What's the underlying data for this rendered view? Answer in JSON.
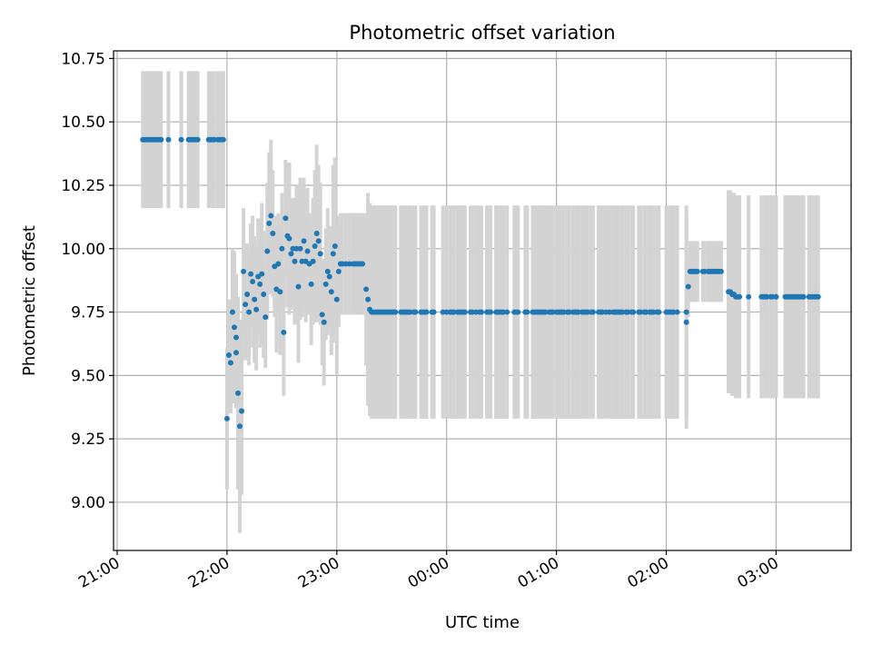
{
  "chart_data": {
    "type": "scatter",
    "title": "Photometric offset variation",
    "xlabel": "UTC time",
    "ylabel": "Photometric offset",
    "x_unit": "UTC time (hh:mm, night spanning midnight)",
    "x_ticks": [
      "21:00",
      "22:00",
      "23:00",
      "00:00",
      "01:00",
      "02:00",
      "03:00"
    ],
    "y_ticks": [
      "9.00",
      "9.25",
      "9.50",
      "9.75",
      "10.00",
      "10.25",
      "10.50",
      "10.75"
    ],
    "xlim": [
      "20:58",
      "03:41"
    ],
    "ylim": [
      8.81,
      10.78
    ],
    "grid": true,
    "colors": {
      "points": "#1f77b4",
      "error_bars": "#d3d3d3",
      "grid": "#b0b0b0"
    },
    "points": [
      [
        "21:14",
        10.43,
        0.27
      ],
      [
        "21:15",
        10.43,
        0.27
      ],
      [
        "21:16",
        10.43,
        0.27
      ],
      [
        "21:17",
        10.43,
        0.27
      ],
      [
        "21:18",
        10.43,
        0.27
      ],
      [
        "21:19",
        10.43,
        0.27
      ],
      [
        "21:20",
        10.43,
        0.27
      ],
      [
        "21:21",
        10.43,
        0.27
      ],
      [
        "21:22",
        10.43,
        0.27
      ],
      [
        "21:23",
        10.43,
        0.27
      ],
      [
        "21:24",
        10.43,
        0.27
      ],
      [
        "21:28",
        10.43,
        0.27
      ],
      [
        "21:35",
        10.43,
        0.27
      ],
      [
        "21:39",
        10.43,
        0.27
      ],
      [
        "21:40",
        10.43,
        0.27
      ],
      [
        "21:41",
        10.43,
        0.27
      ],
      [
        "21:42",
        10.43,
        0.27
      ],
      [
        "21:43",
        10.43,
        0.27
      ],
      [
        "21:44",
        10.43,
        0.27
      ],
      [
        "21:50",
        10.43,
        0.27
      ],
      [
        "21:51",
        10.43,
        0.27
      ],
      [
        "21:52",
        10.43,
        0.27
      ],
      [
        "21:53",
        10.43,
        0.27
      ],
      [
        "21:55",
        10.43,
        0.27
      ],
      [
        "21:56",
        10.43,
        0.27
      ],
      [
        "21:57",
        10.43,
        0.27
      ],
      [
        "21:58",
        10.43,
        0.27
      ],
      [
        "22:00",
        9.33,
        0.28
      ],
      [
        "22:01",
        9.58,
        0.22
      ],
      [
        "22:02",
        9.55,
        0.2
      ],
      [
        "22:03",
        9.75,
        0.25
      ],
      [
        "22:04",
        9.69,
        0.3
      ],
      [
        "22:05",
        9.59,
        0.22
      ],
      [
        "22:05",
        9.65,
        0.25
      ],
      [
        "22:06",
        9.43,
        0.38
      ],
      [
        "22:07",
        9.3,
        0.42
      ],
      [
        "22:08",
        9.36,
        0.33
      ],
      [
        "22:09",
        9.91,
        0.25
      ],
      [
        "22:10",
        9.78,
        0.22
      ],
      [
        "22:11",
        9.82,
        0.2
      ],
      [
        "22:12",
        9.75,
        0.21
      ],
      [
        "22:13",
        9.9,
        0.2
      ],
      [
        "22:14",
        9.87,
        0.26
      ],
      [
        "22:15",
        9.8,
        0.25
      ],
      [
        "22:16",
        9.76,
        0.24
      ],
      [
        "22:17",
        9.89,
        0.23
      ],
      [
        "22:18",
        9.86,
        0.25
      ],
      [
        "22:19",
        9.9,
        0.28
      ],
      [
        "22:20",
        9.82,
        0.25
      ],
      [
        "22:21",
        9.73,
        0.2
      ],
      [
        "22:22",
        9.99,
        0.27
      ],
      [
        "22:23",
        10.1,
        0.28
      ],
      [
        "22:24",
        10.13,
        0.3
      ],
      [
        "22:25",
        10.06,
        0.25
      ],
      [
        "22:26",
        9.93,
        0.2
      ],
      [
        "22:27",
        9.84,
        0.25
      ],
      [
        "22:28",
        9.94,
        0.2
      ],
      [
        "22:29",
        9.83,
        0.25
      ],
      [
        "22:30",
        10.0,
        0.22
      ],
      [
        "22:31",
        9.67,
        0.25
      ],
      [
        "22:32",
        10.12,
        0.23
      ],
      [
        "22:33",
        10.05,
        0.28
      ],
      [
        "22:34",
        10.04,
        0.3
      ],
      [
        "22:35",
        9.98,
        0.22
      ],
      [
        "22:36",
        10.0,
        0.2
      ],
      [
        "22:37",
        9.95,
        0.25
      ],
      [
        "22:38",
        10.0,
        0.25
      ],
      [
        "22:39",
        9.85,
        0.3
      ],
      [
        "22:40",
        10.0,
        0.28
      ],
      [
        "22:41",
        9.95,
        0.22
      ],
      [
        "22:42",
        10.03,
        0.25
      ],
      [
        "22:43",
        9.95,
        0.24
      ],
      [
        "22:44",
        9.99,
        0.25
      ],
      [
        "22:45",
        9.94,
        0.2
      ],
      [
        "22:46",
        9.86,
        0.24
      ],
      [
        "22:47",
        9.95,
        0.25
      ],
      [
        "22:48",
        10.01,
        0.3
      ],
      [
        "22:49",
        10.06,
        0.35
      ],
      [
        "22:50",
        10.03,
        0.3
      ],
      [
        "22:51",
        9.98,
        0.28
      ],
      [
        "22:52",
        9.74,
        0.2
      ],
      [
        "22:53",
        9.71,
        0.25
      ],
      [
        "22:54",
        9.86,
        0.22
      ],
      [
        "22:55",
        9.91,
        0.25
      ],
      [
        "22:56",
        9.89,
        0.2
      ],
      [
        "22:57",
        9.83,
        0.25
      ],
      [
        "22:58",
        9.98,
        0.35
      ],
      [
        "22:59",
        10.01,
        0.35
      ],
      [
        "23:00",
        9.8,
        0.3
      ],
      [
        "23:01",
        9.91,
        0.22
      ],
      [
        "23:02",
        9.94,
        0.2
      ],
      [
        "23:03",
        9.94,
        0.2
      ],
      [
        "23:05",
        9.94,
        0.2
      ],
      [
        "23:07",
        9.94,
        0.2
      ],
      [
        "23:09",
        9.94,
        0.2
      ],
      [
        "23:10",
        9.94,
        0.2
      ],
      [
        "23:11",
        9.94,
        0.2
      ],
      [
        "23:12",
        9.94,
        0.2
      ],
      [
        "23:13",
        9.94,
        0.2
      ],
      [
        "23:14",
        9.94,
        0.2
      ],
      [
        "23:16",
        9.84,
        0.3
      ],
      [
        "23:17",
        9.8,
        0.42
      ],
      [
        "23:18",
        9.76,
        0.42
      ],
      [
        "23:19",
        9.75,
        0.42
      ],
      [
        "23:20",
        9.75,
        0.42
      ],
      [
        "23:21",
        9.75,
        0.42
      ],
      [
        "23:22",
        9.75,
        0.42
      ],
      [
        "23:23",
        9.75,
        0.42
      ],
      [
        "23:24",
        9.75,
        0.42
      ],
      [
        "23:25",
        9.75,
        0.42
      ],
      [
        "23:26",
        9.75,
        0.42
      ],
      [
        "23:27",
        9.75,
        0.42
      ],
      [
        "23:28",
        9.75,
        0.42
      ],
      [
        "23:29",
        9.75,
        0.42
      ],
      [
        "23:30",
        9.75,
        0.42
      ],
      [
        "23:31",
        9.75,
        0.42
      ],
      [
        "23:32",
        9.75,
        0.42
      ],
      [
        "23:35",
        9.75,
        0.42
      ],
      [
        "23:36",
        9.75,
        0.42
      ],
      [
        "23:37",
        9.75,
        0.42
      ],
      [
        "23:38",
        9.75,
        0.42
      ],
      [
        "23:39",
        9.75,
        0.42
      ],
      [
        "23:40",
        9.75,
        0.42
      ],
      [
        "23:42",
        9.75,
        0.42
      ],
      [
        "23:43",
        9.75,
        0.42
      ],
      [
        "23:46",
        9.75,
        0.42
      ],
      [
        "23:47",
        9.75,
        0.42
      ],
      [
        "23:48",
        9.75,
        0.42
      ],
      [
        "23:49",
        9.75,
        0.42
      ],
      [
        "23:52",
        9.75,
        0.42
      ],
      [
        "23:53",
        9.75,
        0.42
      ],
      [
        "23:58",
        9.75,
        0.42
      ],
      [
        "00:00",
        9.75,
        0.42
      ],
      [
        "00:02",
        9.75,
        0.42
      ],
      [
        "00:03",
        9.75,
        0.42
      ],
      [
        "00:04",
        9.75,
        0.42
      ],
      [
        "00:06",
        9.75,
        0.42
      ],
      [
        "00:07",
        9.75,
        0.42
      ],
      [
        "00:08",
        9.75,
        0.42
      ],
      [
        "00:09",
        9.75,
        0.42
      ],
      [
        "00:10",
        9.75,
        0.42
      ],
      [
        "00:13",
        9.75,
        0.42
      ],
      [
        "00:14",
        9.75,
        0.42
      ],
      [
        "00:16",
        9.75,
        0.42
      ],
      [
        "00:18",
        9.75,
        0.42
      ],
      [
        "00:19",
        9.75,
        0.42
      ],
      [
        "00:22",
        9.75,
        0.42
      ],
      [
        "00:23",
        9.75,
        0.42
      ],
      [
        "00:24",
        9.75,
        0.42
      ],
      [
        "00:27",
        9.75,
        0.42
      ],
      [
        "00:28",
        9.75,
        0.42
      ],
      [
        "00:29",
        9.75,
        0.42
      ],
      [
        "00:30",
        9.75,
        0.42
      ],
      [
        "00:31",
        9.75,
        0.42
      ],
      [
        "00:33",
        9.75,
        0.42
      ],
      [
        "00:37",
        9.75,
        0.42
      ],
      [
        "00:38",
        9.75,
        0.42
      ],
      [
        "00:39",
        9.75,
        0.42
      ],
      [
        "00:43",
        9.75,
        0.42
      ],
      [
        "00:44",
        9.75,
        0.42
      ],
      [
        "00:47",
        9.75,
        0.42
      ],
      [
        "00:48",
        9.75,
        0.42
      ],
      [
        "00:49",
        9.75,
        0.42
      ],
      [
        "00:50",
        9.75,
        0.42
      ],
      [
        "00:51",
        9.75,
        0.42
      ],
      [
        "00:52",
        9.75,
        0.42
      ],
      [
        "00:53",
        9.75,
        0.42
      ],
      [
        "00:54",
        9.75,
        0.42
      ],
      [
        "00:56",
        9.75,
        0.42
      ],
      [
        "00:57",
        9.75,
        0.42
      ],
      [
        "00:58",
        9.75,
        0.42
      ],
      [
        "01:00",
        9.75,
        0.42
      ],
      [
        "01:01",
        9.75,
        0.42
      ],
      [
        "01:02",
        9.75,
        0.42
      ],
      [
        "01:03",
        9.75,
        0.42
      ],
      [
        "01:04",
        9.75,
        0.42
      ],
      [
        "01:06",
        9.75,
        0.42
      ],
      [
        "01:07",
        9.75,
        0.42
      ],
      [
        "01:09",
        9.75,
        0.42
      ],
      [
        "01:10",
        9.75,
        0.42
      ],
      [
        "01:11",
        9.75,
        0.42
      ],
      [
        "01:12",
        9.75,
        0.42
      ],
      [
        "01:14",
        9.75,
        0.42
      ],
      [
        "01:15",
        9.75,
        0.42
      ],
      [
        "01:16",
        9.75,
        0.42
      ],
      [
        "01:17",
        9.75,
        0.42
      ],
      [
        "01:19",
        9.75,
        0.42
      ],
      [
        "01:20",
        9.75,
        0.42
      ],
      [
        "01:23",
        9.75,
        0.42
      ],
      [
        "01:24",
        9.75,
        0.42
      ],
      [
        "01:25",
        9.75,
        0.42
      ],
      [
        "01:27",
        9.75,
        0.42
      ],
      [
        "01:29",
        9.75,
        0.42
      ],
      [
        "01:31",
        9.75,
        0.42
      ],
      [
        "01:32",
        9.75,
        0.42
      ],
      [
        "01:33",
        9.75,
        0.42
      ],
      [
        "01:34",
        9.75,
        0.42
      ],
      [
        "01:35",
        9.75,
        0.42
      ],
      [
        "01:36",
        9.75,
        0.42
      ],
      [
        "01:38",
        9.75,
        0.42
      ],
      [
        "01:39",
        9.75,
        0.42
      ],
      [
        "01:41",
        9.75,
        0.42
      ],
      [
        "01:42",
        9.75,
        0.42
      ],
      [
        "01:45",
        9.75,
        0.42
      ],
      [
        "01:46",
        9.75,
        0.42
      ],
      [
        "01:48",
        9.75,
        0.42
      ],
      [
        "01:49",
        9.75,
        0.42
      ],
      [
        "01:51",
        9.75,
        0.42
      ],
      [
        "01:52",
        9.75,
        0.42
      ],
      [
        "01:53",
        9.75,
        0.42
      ],
      [
        "01:55",
        9.75,
        0.42
      ],
      [
        "01:56",
        9.75,
        0.42
      ],
      [
        "02:00",
        9.75,
        0.42
      ],
      [
        "02:01",
        9.75,
        0.42
      ],
      [
        "02:02",
        9.75,
        0.42
      ],
      [
        "02:03",
        9.75,
        0.42
      ],
      [
        "02:04",
        9.75,
        0.42
      ],
      [
        "02:06",
        9.75,
        0.42
      ],
      [
        "02:11",
        9.75,
        0.42
      ],
      [
        "02:11",
        9.71,
        0.42
      ],
      [
        "02:12",
        9.85,
        0.12
      ],
      [
        "02:13",
        9.91,
        0.12
      ],
      [
        "02:14",
        9.91,
        0.12
      ],
      [
        "02:15",
        9.91,
        0.12
      ],
      [
        "02:16",
        9.91,
        0.12
      ],
      [
        "02:17",
        9.91,
        0.12
      ],
      [
        "02:20",
        9.91,
        0.12
      ],
      [
        "02:21",
        9.91,
        0.12
      ],
      [
        "02:23",
        9.91,
        0.12
      ],
      [
        "02:24",
        9.91,
        0.12
      ],
      [
        "02:25",
        9.91,
        0.12
      ],
      [
        "02:26",
        9.91,
        0.12
      ],
      [
        "02:27",
        9.91,
        0.12
      ],
      [
        "02:28",
        9.91,
        0.12
      ],
      [
        "02:29",
        9.91,
        0.12
      ],
      [
        "02:30",
        9.91,
        0.12
      ],
      [
        "02:34",
        9.83,
        0.4
      ],
      [
        "02:35",
        9.83,
        0.4
      ],
      [
        "02:36",
        9.82,
        0.4
      ],
      [
        "02:37",
        9.82,
        0.4
      ],
      [
        "02:38",
        9.81,
        0.4
      ],
      [
        "02:39",
        9.81,
        0.4
      ],
      [
        "02:40",
        9.81,
        0.4
      ],
      [
        "02:45",
        9.81,
        0.4
      ],
      [
        "02:52",
        9.81,
        0.4
      ],
      [
        "02:53",
        9.81,
        0.4
      ],
      [
        "02:54",
        9.81,
        0.4
      ],
      [
        "02:55",
        9.81,
        0.4
      ],
      [
        "02:57",
        9.81,
        0.4
      ],
      [
        "02:58",
        9.81,
        0.4
      ],
      [
        "03:00",
        9.81,
        0.4
      ],
      [
        "03:00",
        9.81,
        0.4
      ],
      [
        "03:05",
        9.81,
        0.4
      ],
      [
        "03:06",
        9.81,
        0.4
      ],
      [
        "03:07",
        9.81,
        0.4
      ],
      [
        "03:08",
        9.81,
        0.4
      ],
      [
        "03:09",
        9.81,
        0.4
      ],
      [
        "03:10",
        9.81,
        0.4
      ],
      [
        "03:11",
        9.81,
        0.4
      ],
      [
        "03:12",
        9.81,
        0.4
      ],
      [
        "03:13",
        9.81,
        0.4
      ],
      [
        "03:14",
        9.81,
        0.4
      ],
      [
        "03:15",
        9.81,
        0.4
      ],
      [
        "03:18",
        9.81,
        0.4
      ],
      [
        "03:19",
        9.81,
        0.4
      ],
      [
        "03:20",
        9.81,
        0.4
      ],
      [
        "03:21",
        9.81,
        0.4
      ],
      [
        "03:22",
        9.81,
        0.4
      ],
      [
        "03:23",
        9.81,
        0.4
      ]
    ]
  }
}
